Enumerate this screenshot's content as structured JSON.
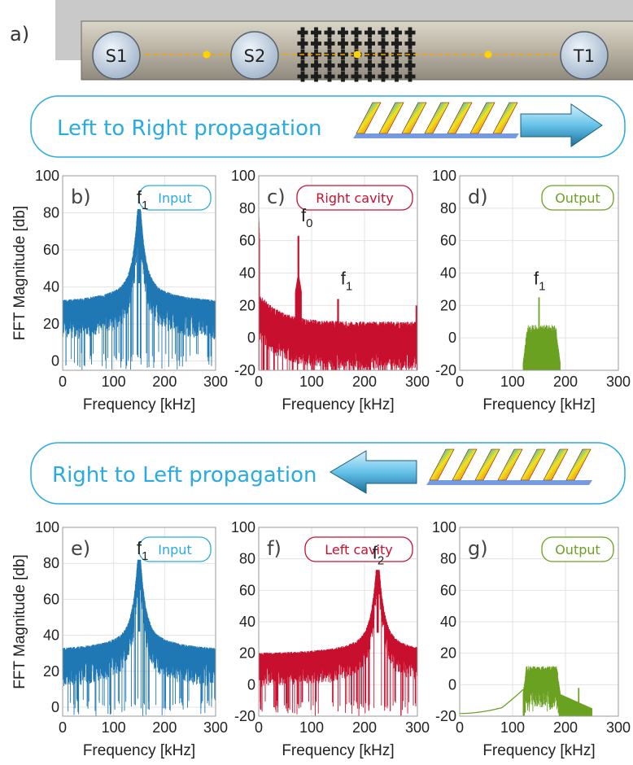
{
  "figure": {
    "panel_a_label": "a)",
    "sensors": [
      "S1",
      "S2",
      "T1"
    ],
    "banner_top": "Left to Right propagation",
    "banner_bottom": "Right to Left propagation",
    "colors": {
      "input": "#1f77b4",
      "cavity": "#c8102e",
      "output": "#6aa121",
      "banner_text": "#29abe2",
      "banner_border": "#29abe2"
    }
  },
  "chart_data": [
    {
      "id": "b",
      "panel_label": "b)",
      "type": "line",
      "badge": "Input",
      "badge_color": "#29abe2",
      "color": "#1f77b4",
      "xlabel": "Frequency [kHz]",
      "ylabel": "FFT Magnitude [db]",
      "xlim": [
        0,
        300
      ],
      "ylim": [
        -5,
        100
      ],
      "xticks": [
        0,
        100,
        200,
        300
      ],
      "yticks": [
        0,
        20,
        40,
        60,
        80,
        100
      ],
      "grid": true,
      "series": [
        {
          "shape": "lorentzian",
          "x_range": [
            0,
            300
          ],
          "peaks": [
            {
              "x": 150,
              "y": 82
            }
          ],
          "baseline": 30,
          "noise_range": [
            -5,
            30
          ]
        }
      ],
      "annotations": [
        {
          "text": "f",
          "sub": "1",
          "x": 145,
          "y": 85
        }
      ]
    },
    {
      "id": "c",
      "panel_label": "c)",
      "type": "line",
      "badge": "Right cavity",
      "badge_color": "#c8102e",
      "color": "#c8102e",
      "xlabel": "Frequency [kHz]",
      "ylabel": "",
      "xlim": [
        0,
        300
      ],
      "ylim": [
        -20,
        100
      ],
      "xticks": [
        0,
        100,
        200,
        300
      ],
      "yticks": [
        -20,
        0,
        20,
        40,
        60,
        80,
        100
      ],
      "grid": true,
      "series": [
        {
          "shape": "decay",
          "x_range": [
            0,
            300
          ],
          "peaks": [
            {
              "x": 75,
              "y": 63
            },
            {
              "x": 150,
              "y": 24
            }
          ],
          "baseline": 0,
          "noise_range": [
            -20,
            20
          ]
        }
      ],
      "annotations": [
        {
          "text": "f",
          "sub": "0",
          "x": 80,
          "y": 72
        },
        {
          "text": "f",
          "sub": "1",
          "x": 155,
          "y": 33
        }
      ]
    },
    {
      "id": "d",
      "panel_label": "d)",
      "type": "line",
      "badge": "Output",
      "badge_color": "#6aa121",
      "color": "#6aa121",
      "xlabel": "Frequency [kHz]",
      "ylabel": "",
      "xlim": [
        0,
        300
      ],
      "ylim": [
        -20,
        100
      ],
      "xticks": [
        0,
        100,
        200,
        300
      ],
      "yticks": [
        -20,
        0,
        20,
        40,
        60,
        80,
        100
      ],
      "grid": true,
      "series": [
        {
          "shape": "band",
          "x_range": [
            120,
            190
          ],
          "peaks": [
            {
              "x": 150,
              "y": 25
            }
          ],
          "baseline": 5,
          "noise_range": [
            -20,
            15
          ]
        }
      ],
      "annotations": [
        {
          "text": "f",
          "sub": "1",
          "x": 140,
          "y": 33
        }
      ]
    },
    {
      "id": "e",
      "panel_label": "e)",
      "type": "line",
      "badge": "Input",
      "badge_color": "#29abe2",
      "color": "#1f77b4",
      "xlabel": "Frequency [kHz]",
      "ylabel": "FFT Magnitude [db]",
      "xlim": [
        0,
        300
      ],
      "ylim": [
        -5,
        100
      ],
      "xticks": [
        0,
        100,
        200,
        300
      ],
      "yticks": [
        0,
        20,
        40,
        60,
        80,
        100
      ],
      "grid": true,
      "series": [
        {
          "shape": "lorentzian",
          "x_range": [
            0,
            300
          ],
          "peaks": [
            {
              "x": 150,
              "y": 82
            }
          ],
          "baseline": 30,
          "noise_range": [
            -5,
            30
          ]
        }
      ],
      "annotations": [
        {
          "text": "f",
          "sub": "1",
          "x": 145,
          "y": 85
        }
      ]
    },
    {
      "id": "f",
      "panel_label": "f)",
      "type": "line",
      "badge": "Left cavity",
      "badge_color": "#c8102e",
      "color": "#c8102e",
      "xlabel": "Frequency [kHz]",
      "ylabel": "",
      "xlim": [
        0,
        300
      ],
      "ylim": [
        -20,
        100
      ],
      "xticks": [
        0,
        100,
        200,
        300
      ],
      "yticks": [
        -20,
        0,
        20,
        40,
        60,
        80,
        100
      ],
      "grid": true,
      "series": [
        {
          "shape": "lorentzian",
          "x_range": [
            0,
            300
          ],
          "peaks": [
            {
              "x": 225,
              "y": 73
            }
          ],
          "baseline": 18,
          "noise_range": [
            -20,
            20
          ]
        }
      ],
      "annotations": [
        {
          "text": "f",
          "sub": "2",
          "x": 215,
          "y": 80
        }
      ]
    },
    {
      "id": "g",
      "panel_label": "g)",
      "type": "line",
      "badge": "Output",
      "badge_color": "#6aa121",
      "color": "#6aa121",
      "xlabel": "Frequency [kHz]",
      "ylabel": "",
      "xlim": [
        0,
        300
      ],
      "ylim": [
        -20,
        100
      ],
      "xticks": [
        0,
        100,
        200,
        300
      ],
      "yticks": [
        -20,
        0,
        20,
        40,
        60,
        80,
        100
      ],
      "grid": true,
      "series": [
        {
          "shape": "band_with_skirt",
          "x_range": [
            0,
            300
          ],
          "band": [
            120,
            190
          ],
          "peaks": [
            {
              "x": 160,
              "y": 14
            },
            {
              "x": 225,
              "y": -2
            }
          ],
          "baseline": -18,
          "noise_range": [
            -8,
            14
          ]
        }
      ],
      "annotations": []
    }
  ]
}
